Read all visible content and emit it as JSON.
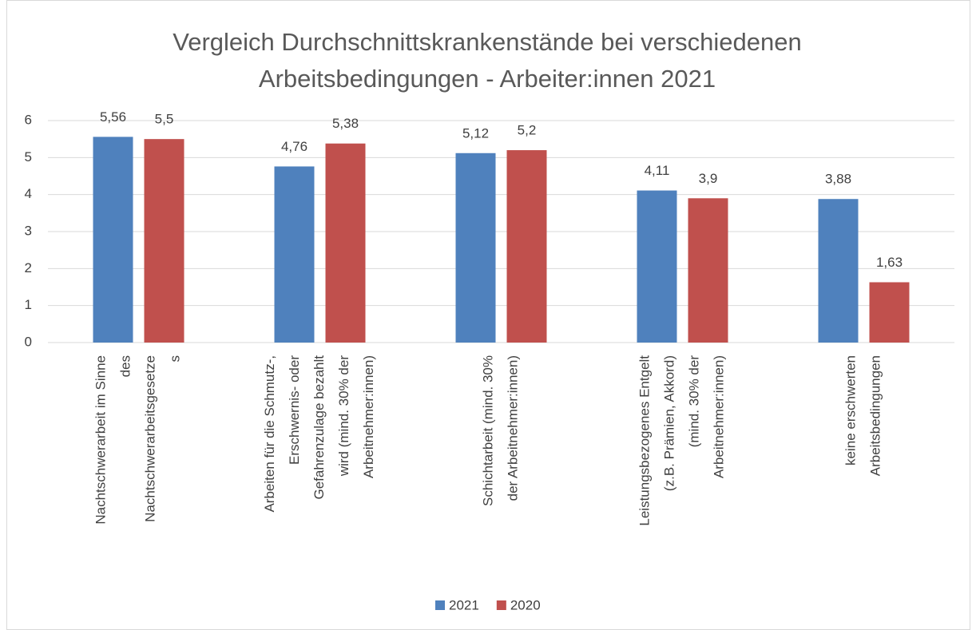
{
  "chart_data": {
    "type": "bar",
    "title": "Vergleich Durchschnittskrankenstände bei verschiedenen Arbeitsbedingungen - Arbeiter:innen 2021",
    "categories": [
      [
        "Nachtschwerarbeit im Sinne",
        "des",
        "Nachtschwerarbeitsgesetze",
        "s"
      ],
      [
        "Arbeiten für die Schmutz-,",
        "Erschwernis- oder",
        "Gefahrenzulage bezahlt",
        "wird (mind. 30% der",
        "Arbeitnehmer:innen)"
      ],
      [
        "Schichtarbeit (mind. 30%",
        "der Arbeitnehmer:innen)"
      ],
      [
        "Leistungsbezogenes Entgelt",
        "(z.B. Prämien, Akkord)",
        "(mind. 30% der",
        "Arbeitnehmer:innen)"
      ],
      [
        "keine erschwerten",
        "Arbeitsbedingungen"
      ]
    ],
    "series": [
      {
        "name": "2021",
        "color": "#4f81bd",
        "values": [
          5.56,
          4.76,
          5.12,
          4.11,
          3.88
        ],
        "value_labels": [
          "5,56",
          "4,76",
          "5,12",
          "4,11",
          "3,88"
        ]
      },
      {
        "name": "2020",
        "color": "#c0504d",
        "values": [
          5.5,
          5.38,
          5.2,
          3.9,
          1.63
        ],
        "value_labels": [
          "5,5",
          "5,38",
          "5,2",
          "3,9",
          "1,63"
        ]
      }
    ],
    "ylim": [
      0,
      6
    ],
    "yticks": [
      0,
      1,
      2,
      3,
      4,
      5,
      6
    ],
    "grid": true,
    "legend": "bottom"
  }
}
